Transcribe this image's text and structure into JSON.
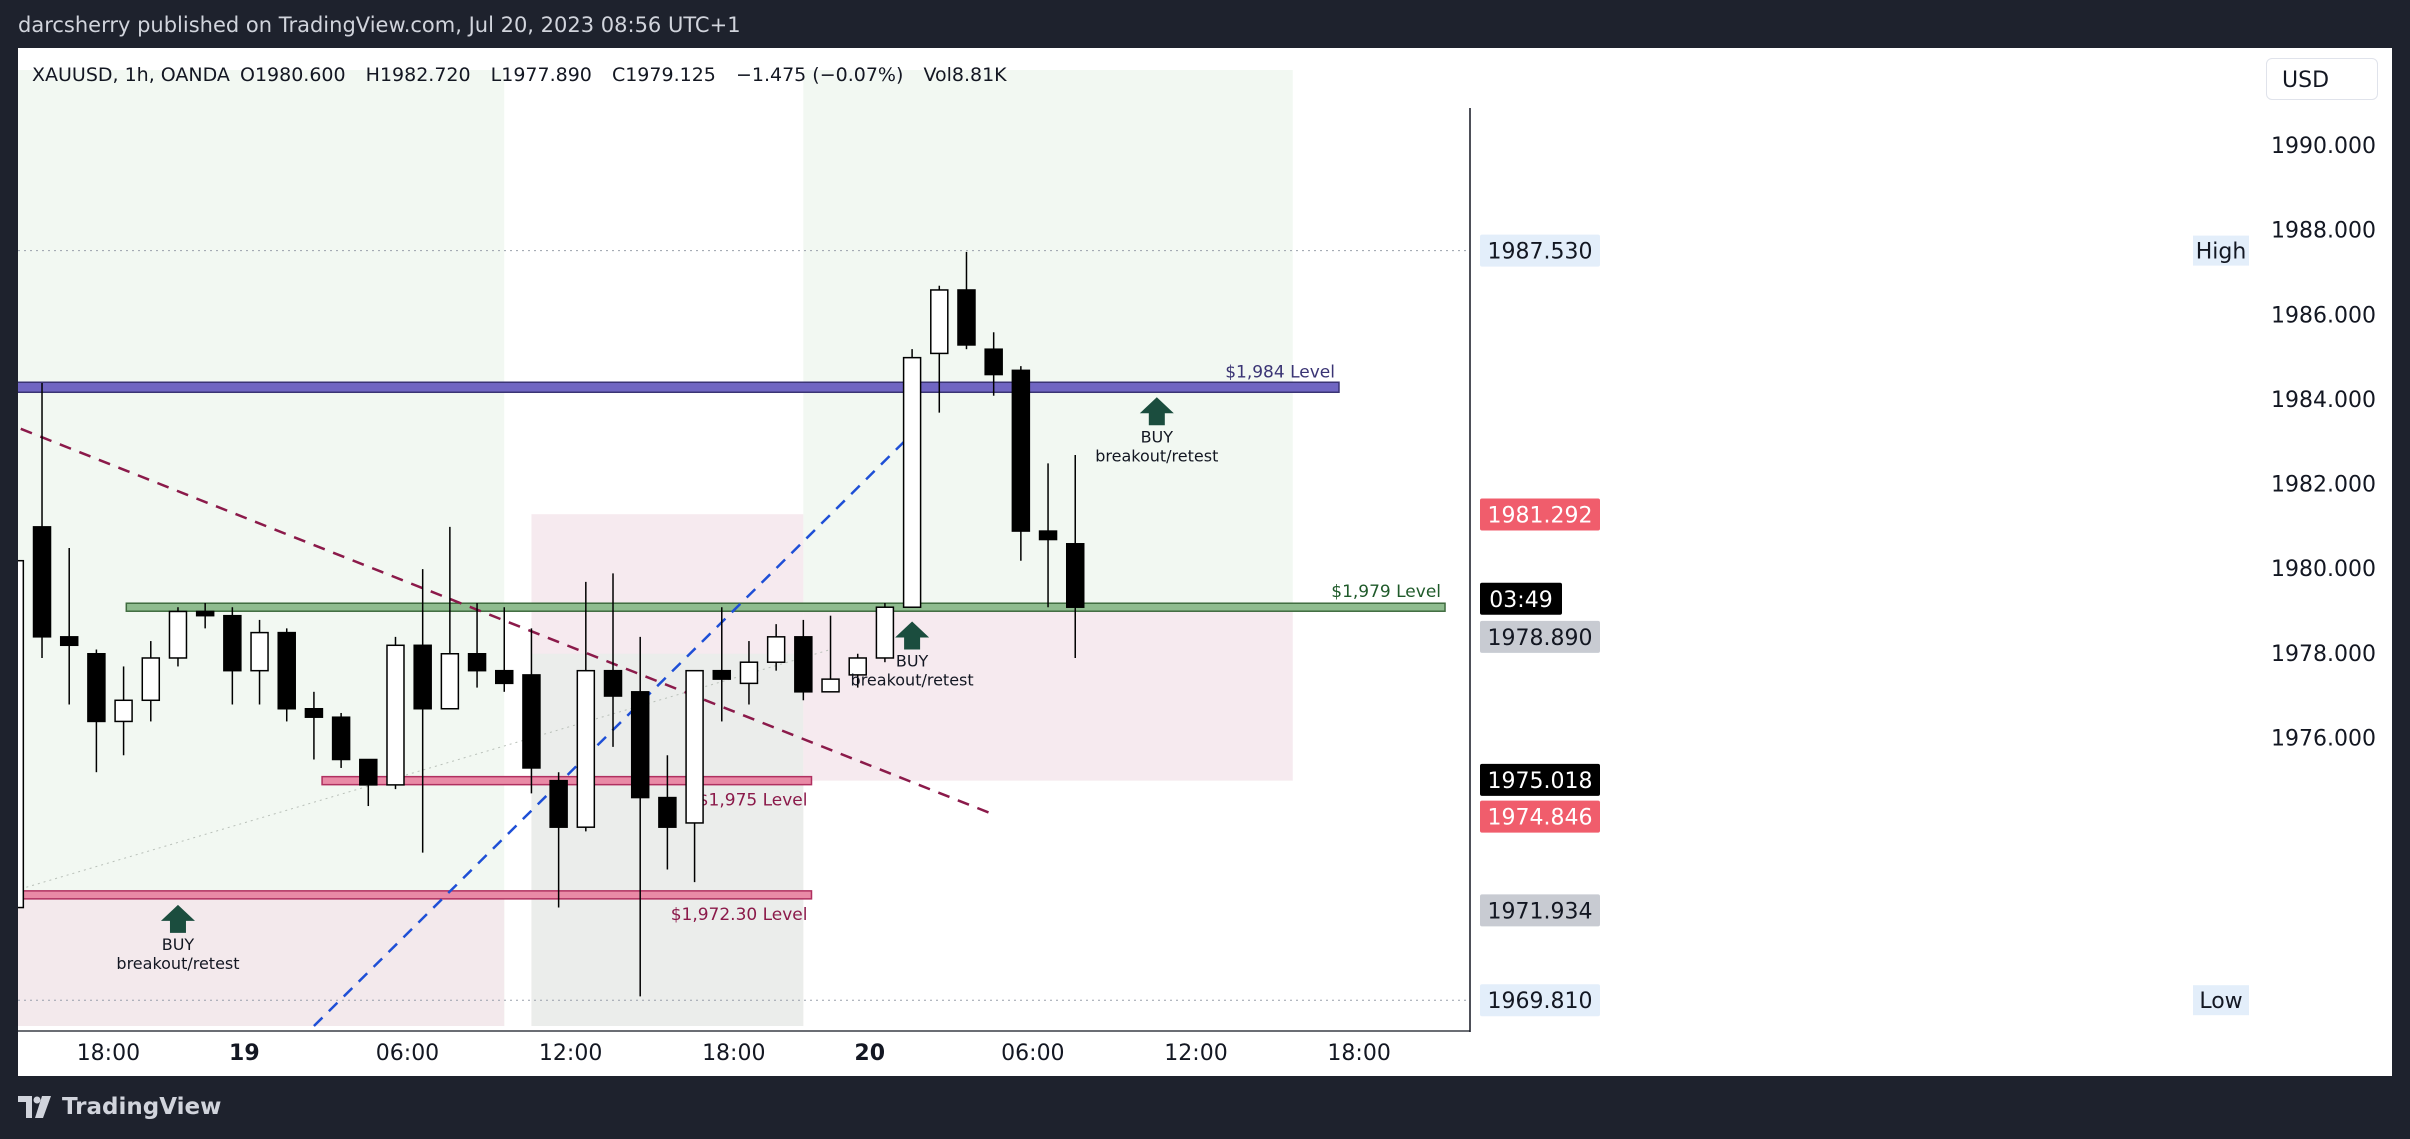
{
  "publisher_line": "darcsherry published on TradingView.com, Jul 20, 2023 08:56 UTC+1",
  "brand": "TradingView",
  "currency": "USD",
  "symbol": {
    "name": "XAUUSD, 1h, OANDA",
    "open": "O1980.600",
    "high": "H1982.720",
    "low": "L1977.890",
    "close": "C1979.125",
    "change": "−1.475 (−0.07%)",
    "volume": "Vol8.81K"
  },
  "colors": {
    "up_candle_fill": "#ffffff",
    "down_candle_fill": "#000000",
    "candle_border": "#000000",
    "level_1984": "#6a62b8",
    "level_1979": "#8fbc8f",
    "level_1975": "#e75a8a",
    "level_1972": "#e75a8a",
    "trendline_down": "#8b1a4a",
    "trendline_up": "#1e4fd6",
    "buy_arrow": "#1b4d3e",
    "current_price_badge": "#000000",
    "bid_badge": "#f05d6c",
    "ask_badge": "#000000",
    "grey_badge": "#c8cbd2"
  },
  "chart_data": {
    "type": "candlestick",
    "ylim": [
      1969.2,
      1991.8
    ],
    "y_ticks": [
      "1990.000",
      "1988.000",
      "1986.000",
      "1984.000",
      "1982.000",
      "1980.000",
      "1978.000",
      "1976.000"
    ],
    "x_ticks": [
      {
        "label": "18:00",
        "t": 3,
        "bold": false
      },
      {
        "label": "19",
        "t": 8,
        "bold": true
      },
      {
        "label": "06:00",
        "t": 14,
        "bold": false
      },
      {
        "label": "12:00",
        "t": 20,
        "bold": false
      },
      {
        "label": "18:00",
        "t": 26,
        "bold": false
      },
      {
        "label": "20",
        "t": 31,
        "bold": true
      },
      {
        "label": "06:00",
        "t": 37,
        "bold": false
      },
      {
        "label": "12:00",
        "t": 43,
        "bold": false
      },
      {
        "label": "18:00",
        "t": 49,
        "bold": false
      }
    ],
    "candles": [
      {
        "t": 0,
        "o": 1972.0,
        "h": 1980.6,
        "l": 1971.6,
        "c": 1980.2
      },
      {
        "t": 1,
        "o": 1981.0,
        "h": 1984.4,
        "l": 1977.9,
        "c": 1978.4
      },
      {
        "t": 2,
        "o": 1978.4,
        "h": 1980.5,
        "l": 1976.8,
        "c": 1978.2
      },
      {
        "t": 3,
        "o": 1978.0,
        "h": 1978.1,
        "l": 1975.2,
        "c": 1976.4
      },
      {
        "t": 4,
        "o": 1976.4,
        "h": 1977.7,
        "l": 1975.6,
        "c": 1976.9
      },
      {
        "t": 5,
        "o": 1976.9,
        "h": 1978.3,
        "l": 1976.4,
        "c": 1977.9
      },
      {
        "t": 6,
        "o": 1977.9,
        "h": 1979.1,
        "l": 1977.7,
        "c": 1979.0
      },
      {
        "t": 7,
        "o": 1979.0,
        "h": 1979.2,
        "l": 1978.6,
        "c": 1978.9
      },
      {
        "t": 8,
        "o": 1978.9,
        "h": 1979.1,
        "l": 1976.8,
        "c": 1977.6
      },
      {
        "t": 9,
        "o": 1977.6,
        "h": 1978.8,
        "l": 1976.8,
        "c": 1978.5
      },
      {
        "t": 10,
        "o": 1978.5,
        "h": 1978.6,
        "l": 1976.4,
        "c": 1976.7
      },
      {
        "t": 11,
        "o": 1976.7,
        "h": 1977.1,
        "l": 1975.5,
        "c": 1976.5
      },
      {
        "t": 12,
        "o": 1976.5,
        "h": 1976.6,
        "l": 1975.3,
        "c": 1975.5
      },
      {
        "t": 13,
        "o": 1975.5,
        "h": 1975.5,
        "l": 1974.4,
        "c": 1974.9
      },
      {
        "t": 14,
        "o": 1974.9,
        "h": 1978.4,
        "l": 1974.8,
        "c": 1978.2
      },
      {
        "t": 15,
        "o": 1978.2,
        "h": 1980.0,
        "l": 1973.3,
        "c": 1976.7
      },
      {
        "t": 16,
        "o": 1976.7,
        "h": 1981.0,
        "l": 1976.7,
        "c": 1978.0
      },
      {
        "t": 17,
        "o": 1978.0,
        "h": 1979.2,
        "l": 1977.2,
        "c": 1977.6
      },
      {
        "t": 18,
        "o": 1977.6,
        "h": 1979.1,
        "l": 1977.1,
        "c": 1977.3
      },
      {
        "t": 19,
        "o": 1977.5,
        "h": 1978.6,
        "l": 1974.7,
        "c": 1975.3
      },
      {
        "t": 20,
        "o": 1975.0,
        "h": 1975.2,
        "l": 1972.0,
        "c": 1973.9
      },
      {
        "t": 21,
        "o": 1973.9,
        "h": 1979.7,
        "l": 1973.8,
        "c": 1977.6
      },
      {
        "t": 22,
        "o": 1977.6,
        "h": 1979.9,
        "l": 1975.8,
        "c": 1977.0
      },
      {
        "t": 23,
        "o": 1977.1,
        "h": 1978.4,
        "l": 1969.9,
        "c": 1974.6
      },
      {
        "t": 24,
        "o": 1974.6,
        "h": 1975.6,
        "l": 1972.9,
        "c": 1973.9
      },
      {
        "t": 25,
        "o": 1974.0,
        "h": 1977.6,
        "l": 1972.6,
        "c": 1977.6
      },
      {
        "t": 26,
        "o": 1977.6,
        "h": 1979.1,
        "l": 1976.4,
        "c": 1977.4
      },
      {
        "t": 27,
        "o": 1977.3,
        "h": 1978.3,
        "l": 1976.8,
        "c": 1977.8
      },
      {
        "t": 28,
        "o": 1977.8,
        "h": 1978.7,
        "l": 1977.6,
        "c": 1978.4
      },
      {
        "t": 29,
        "o": 1978.4,
        "h": 1978.8,
        "l": 1976.9,
        "c": 1977.1
      },
      {
        "t": 30,
        "o": 1977.1,
        "h": 1978.9,
        "l": 1977.1,
        "c": 1977.4
      },
      {
        "t": 31,
        "o": 1977.5,
        "h": 1978.0,
        "l": 1977.2,
        "c": 1977.9
      },
      {
        "t": 32,
        "o": 1977.9,
        "h": 1979.2,
        "l": 1977.8,
        "c": 1979.1
      },
      {
        "t": 33,
        "o": 1979.1,
        "h": 1985.2,
        "l": 1979.1,
        "c": 1985.0
      },
      {
        "t": 34,
        "o": 1985.1,
        "h": 1986.7,
        "l": 1983.7,
        "c": 1986.6
      },
      {
        "t": 35,
        "o": 1986.6,
        "h": 1987.5,
        "l": 1985.2,
        "c": 1985.3
      },
      {
        "t": 36,
        "o": 1985.2,
        "h": 1985.6,
        "l": 1984.1,
        "c": 1984.6
      },
      {
        "t": 37,
        "o": 1984.7,
        "h": 1984.8,
        "l": 1980.2,
        "c": 1980.9
      },
      {
        "t": 38,
        "o": 1980.9,
        "h": 1982.5,
        "l": 1979.1,
        "c": 1980.7
      },
      {
        "t": 39,
        "o": 1980.6,
        "h": 1982.7,
        "l": 1977.9,
        "c": 1979.1
      }
    ],
    "levels": [
      {
        "name": "level-1984",
        "label": "$1,984 Level",
        "y": 1984.3,
        "t0": -1,
        "t1": 48.7
      },
      {
        "name": "level-1979",
        "label": "$1,979 Level",
        "y": 1979.1,
        "t0": 4.1,
        "t1": 52.6
      },
      {
        "name": "level-1975",
        "label": "$1,975 Level",
        "y": 1975.0,
        "t0": 11.3,
        "t1": 29.3
      },
      {
        "name": "level-1972",
        "label": "$1,972.30 Level",
        "y": 1972.3,
        "t0": -0.5,
        "t1": 29.3
      }
    ],
    "buy_markers": [
      {
        "text1": "BUY",
        "text2": "breakout/retest",
        "t": 6,
        "y": 1972.3
      },
      {
        "text1": "BUY",
        "text2": "breakout/retest",
        "t": 33,
        "y": 1979.0
      },
      {
        "text1": "BUY",
        "text2": "breakout/retest",
        "t": 42,
        "y": 1984.3
      }
    ],
    "trendlines": [
      {
        "name": "downtrend-line",
        "t0": -0.5,
        "y0": 1983.5,
        "t1": 36,
        "y1": 1974.2,
        "style": "dashed"
      },
      {
        "name": "uptrend-line",
        "t0": 11.0,
        "y0": 1969.2,
        "t1": 33,
        "y1": 1983.2,
        "style": "dashed"
      }
    ],
    "zones": [
      {
        "name": "green-zone-left",
        "t0": -0.5,
        "t1": 18.0,
        "y0": 1991.8,
        "y1": 1969.2,
        "color": "#e8f3e8",
        "opacity": 0.55
      },
      {
        "name": "pink-zone-left",
        "t0": -0.5,
        "t1": 18.0,
        "y0": 1972.2,
        "y1": 1969.2,
        "color": "#f3e3ea",
        "opacity": 0.7
      },
      {
        "name": "pink-zone-mid",
        "t0": 19.0,
        "t1": 29.0,
        "y0": 1981.3,
        "y1": 1969.2,
        "color": "#f3e3ea",
        "opacity": 0.75
      },
      {
        "name": "green-zone-mid",
        "t0": 19.0,
        "t1": 29.0,
        "y0": 1978.0,
        "y1": 1969.2,
        "color": "#e5efe7",
        "opacity": 0.6
      },
      {
        "name": "green-zone-right",
        "t0": 29.0,
        "t1": 47.0,
        "y0": 1991.8,
        "y1": 1979.1,
        "color": "#e8f3e8",
        "opacity": 0.55
      },
      {
        "name": "pink-zone-right",
        "t0": 29.0,
        "t1": 47.0,
        "y0": 1979.1,
        "y1": 1975.0,
        "color": "#f3e3ea",
        "opacity": 0.75
      }
    ],
    "price_badges": [
      {
        "name": "high-badge",
        "label": "High",
        "value": "1987.530",
        "y": 1987.53,
        "bg": "#e3eefa",
        "fg": "#131722"
      },
      {
        "name": "bid-badge",
        "value": "1981.292",
        "y": 1981.292,
        "bg": "#f05d6c",
        "fg": "#ffffff"
      },
      {
        "name": "countdown-badge",
        "value": "03:49",
        "y": 1979.3,
        "bg": "#000000",
        "fg": "#ffffff"
      },
      {
        "name": "last-close-badge",
        "value": "1978.890",
        "y": 1978.4,
        "bg": "#c8cbd2",
        "fg": "#131722"
      },
      {
        "name": "ask-badge",
        "value": "1975.018",
        "y": 1975.018,
        "bg": "#000000",
        "fg": "#ffffff"
      },
      {
        "name": "bid-low-badge",
        "value": "1974.846",
        "y": 1974.15,
        "bg": "#f05d6c",
        "fg": "#ffffff"
      },
      {
        "name": "grey-low-badge",
        "value": "1971.934",
        "y": 1971.934,
        "bg": "#c8cbd2",
        "fg": "#131722"
      },
      {
        "name": "low-badge",
        "label": "Low",
        "value": "1969.810",
        "y": 1969.81,
        "bg": "#e3eefa",
        "fg": "#131722"
      }
    ]
  }
}
